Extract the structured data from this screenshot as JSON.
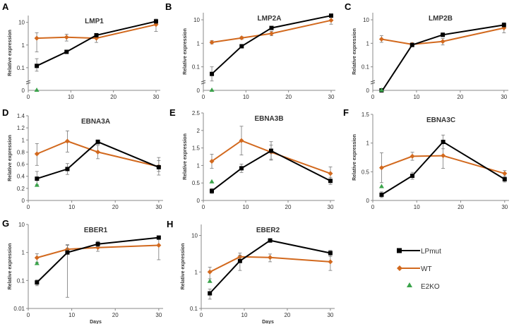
{
  "figure": {
    "series_colors": {
      "LPmut": "#000000",
      "WT": "#d2691e",
      "E2KO": "#3aa34a"
    }
  },
  "legend": {
    "items": [
      {
        "name": "LPmut",
        "color": "#000000",
        "marker": "square"
      },
      {
        "name": "WT",
        "color": "#d2691e",
        "marker": "diamond"
      },
      {
        "name": "E2KO",
        "color": "#3aa34a",
        "marker": "triangle"
      }
    ]
  },
  "chart_data": [
    {
      "type": "line",
      "letter": "A",
      "title": "LMP1",
      "xlabel": "",
      "ylabel": "Relative expression",
      "xlim": [
        0,
        31
      ],
      "xticks": [
        0,
        10,
        20,
        30
      ],
      "xticklabels": [
        "0",
        "10",
        "20",
        "30"
      ],
      "yscale": "log",
      "ylim": [
        0.01,
        20
      ],
      "yticks": [
        0.1,
        1,
        10
      ],
      "yticklabels": [
        "0.1",
        "1",
        "10"
      ],
      "zero_label": "0",
      "series": [
        {
          "name": "LPmut",
          "x": [
            2,
            9,
            16,
            30
          ],
          "values": [
            0.12,
            0.5,
            2.7,
            11
          ],
          "err_low": [
            0.07,
            0.45,
            2.3,
            10
          ],
          "err_high": [
            0.25,
            0.55,
            3.2,
            12
          ]
        },
        {
          "name": "WT",
          "x": [
            2,
            9,
            16,
            30
          ],
          "values": [
            2.0,
            2.2,
            2.0,
            8.0
          ],
          "err_low": [
            0.5,
            1.5,
            1.3,
            4.0
          ],
          "err_high": [
            3.5,
            3.0,
            3.2,
            14
          ]
        },
        {
          "name": "E2KO",
          "x": [
            2
          ],
          "values": [
            0
          ]
        }
      ]
    },
    {
      "type": "line",
      "letter": "B",
      "title": "LMP2A",
      "xlabel": "",
      "ylabel": "Relative expression",
      "xlim": [
        0,
        31
      ],
      "xticks": [
        0,
        10,
        20,
        30
      ],
      "xticklabels": [
        "0",
        "10",
        "20",
        "30"
      ],
      "yscale": "log",
      "ylim": [
        0.01,
        20
      ],
      "yticks": [
        0.1,
        1,
        10
      ],
      "yticklabels": [
        "0.1",
        "1",
        "10"
      ],
      "zero_label": "0",
      "series": [
        {
          "name": "LPmut",
          "x": [
            2,
            9,
            16,
            30
          ],
          "values": [
            0.05,
            0.75,
            4.5,
            15
          ],
          "err_low": [
            0.025,
            0.65,
            4.0,
            14
          ],
          "err_high": [
            0.1,
            0.9,
            5.0,
            16
          ]
        },
        {
          "name": "WT",
          "x": [
            2,
            9,
            16,
            30
          ],
          "values": [
            1.1,
            1.7,
            2.6,
            9.5
          ],
          "err_low": [
            0.95,
            1.5,
            2.1,
            6.5
          ],
          "err_high": [
            1.3,
            1.9,
            3.2,
            13
          ]
        },
        {
          "name": "E2KO",
          "x": [
            2
          ],
          "values": [
            0
          ]
        }
      ]
    },
    {
      "type": "line",
      "letter": "C",
      "title": "LMP2B",
      "xlabel": "",
      "ylabel": "Relative expression",
      "xlim": [
        0,
        31
      ],
      "xticks": [
        0,
        10,
        20,
        30
      ],
      "xticklabels": [
        "0",
        "10",
        "20",
        "30"
      ],
      "yscale": "log",
      "ylim": [
        0.01,
        20
      ],
      "yticks": [
        0.1,
        1,
        10
      ],
      "yticklabels": [
        "0.1",
        "1",
        "10"
      ],
      "zero_label": "0",
      "series": [
        {
          "name": "LPmut",
          "x": [
            2,
            9,
            16,
            30
          ],
          "values": [
            0,
            0.85,
            2.3,
            6.0
          ],
          "err_low": [
            0,
            0.75,
            1.9,
            5.5
          ],
          "err_high": [
            0,
            0.95,
            2.8,
            6.5
          ]
        },
        {
          "name": "WT",
          "x": [
            2,
            9,
            16,
            30
          ],
          "values": [
            1.5,
            0.9,
            1.2,
            4.5
          ],
          "err_low": [
            1.1,
            0.75,
            0.85,
            2.8
          ],
          "err_high": [
            2.1,
            1.05,
            1.6,
            7.5
          ]
        },
        {
          "name": "E2KO",
          "x": [
            2
          ],
          "values": [
            0
          ]
        }
      ]
    },
    {
      "type": "line",
      "letter": "D",
      "title": "EBNA3A",
      "xlabel": "",
      "ylabel": "Relative expression",
      "xlim": [
        0,
        31
      ],
      "xticks": [
        0,
        10,
        20,
        30
      ],
      "xticklabels": [
        "0",
        "10",
        "20",
        "30"
      ],
      "yscale": "linear",
      "ylim": [
        0,
        1.4
      ],
      "yticks": [
        0,
        0.2,
        0.4,
        0.6,
        0.8,
        1,
        1.2,
        1.4
      ],
      "yticklabels": [
        "0",
        "0.2",
        "0.4",
        "0.6",
        "0.8",
        "1",
        "1.2",
        "1.4"
      ],
      "series": [
        {
          "name": "LPmut",
          "x": [
            2,
            9,
            16,
            30
          ],
          "values": [
            0.36,
            0.52,
            0.97,
            0.55
          ],
          "err_low": [
            0.26,
            0.43,
            0.93,
            0.42
          ],
          "err_high": [
            0.48,
            0.61,
            1.0,
            0.66
          ]
        },
        {
          "name": "WT",
          "x": [
            2,
            9,
            16,
            30
          ],
          "values": [
            0.77,
            0.98,
            0.8,
            0.56
          ],
          "err_low": [
            0.58,
            0.8,
            0.69,
            0.48
          ],
          "err_high": [
            0.94,
            1.15,
            0.91,
            0.71
          ]
        },
        {
          "name": "E2KO",
          "x": [
            2
          ],
          "values": [
            0.25
          ]
        }
      ]
    },
    {
      "type": "line",
      "letter": "E",
      "title": "EBNA3B",
      "xlabel": "",
      "ylabel": "Relative expression",
      "xlim": [
        0,
        31
      ],
      "xticks": [
        0,
        10,
        20,
        30
      ],
      "xticklabels": [
        "0",
        "10",
        "20",
        "30"
      ],
      "yscale": "linear",
      "ylim": [
        0,
        2.5
      ],
      "yticks": [
        0,
        0.5,
        1,
        1.5,
        2,
        2.5
      ],
      "yticklabels": [
        "0",
        "0.5",
        "1",
        "1.5",
        "2",
        "2.5"
      ],
      "series": [
        {
          "name": "LPmut",
          "x": [
            2,
            9,
            16,
            30
          ],
          "values": [
            0.27,
            0.92,
            1.42,
            0.56
          ],
          "err_low": [
            0.2,
            0.8,
            1.15,
            0.46
          ],
          "err_high": [
            0.34,
            1.04,
            1.68,
            0.66
          ]
        },
        {
          "name": "WT",
          "x": [
            2,
            9,
            16,
            30
          ],
          "values": [
            1.12,
            1.71,
            1.38,
            0.77
          ],
          "err_low": [
            0.92,
            1.3,
            1.18,
            0.58
          ],
          "err_high": [
            1.32,
            2.12,
            1.58,
            0.96
          ]
        },
        {
          "name": "E2KO",
          "x": [
            2
          ],
          "values": [
            0.53
          ]
        }
      ]
    },
    {
      "type": "line",
      "letter": "F",
      "title": "EBNA3C",
      "xlabel": "",
      "ylabel": "Relative expression",
      "xlim": [
        0,
        31
      ],
      "xticks": [
        0,
        10,
        20,
        30
      ],
      "xticklabels": [
        "0",
        "10",
        "20",
        "30"
      ],
      "yscale": "linear",
      "ylim": [
        0,
        1.5
      ],
      "yticks": [
        0,
        0.5,
        1,
        1.5
      ],
      "yticklabels": [
        "0",
        "0.5",
        "1",
        "1.5"
      ],
      "series": [
        {
          "name": "LPmut",
          "x": [
            2,
            9,
            16,
            30
          ],
          "values": [
            0.1,
            0.43,
            1.02,
            0.37
          ],
          "err_low": [
            0.05,
            0.37,
            0.9,
            0.32
          ],
          "err_high": [
            0.15,
            0.49,
            1.14,
            0.42
          ]
        },
        {
          "name": "WT",
          "x": [
            2,
            9,
            16,
            30
          ],
          "values": [
            0.57,
            0.77,
            0.78,
            0.47
          ],
          "err_low": [
            0.31,
            0.7,
            0.56,
            0.42
          ],
          "err_high": [
            0.83,
            0.84,
            1.0,
            0.52
          ]
        },
        {
          "name": "E2KO",
          "x": [
            2
          ],
          "values": [
            0.24
          ]
        }
      ]
    },
    {
      "type": "line",
      "letter": "G",
      "title": "EBER1",
      "xlabel": "Days",
      "ylabel": "Relative expression",
      "xlim": [
        0,
        31
      ],
      "xticks": [
        0,
        10,
        20,
        30
      ],
      "xticklabels": [
        "0",
        "10",
        "20",
        "30"
      ],
      "yscale": "log",
      "ylim": [
        0.01,
        10
      ],
      "yticks": [
        0.01,
        0.1,
        1,
        10
      ],
      "yticklabels": [
        "0.01",
        "0.1",
        "1",
        "10"
      ],
      "series": [
        {
          "name": "LPmut",
          "x": [
            2,
            9,
            16,
            30
          ],
          "values": [
            0.085,
            1.0,
            2.0,
            3.4
          ],
          "err_low": [
            0.065,
            0.025,
            1.6,
            3.0
          ],
          "err_high": [
            0.105,
            1.9,
            2.5,
            3.9
          ]
        },
        {
          "name": "WT",
          "x": [
            2,
            9,
            16,
            30
          ],
          "values": [
            0.65,
            1.3,
            1.5,
            1.8
          ],
          "err_low": [
            0.45,
            0.9,
            1.1,
            0.55
          ],
          "err_high": [
            0.9,
            1.8,
            2.0,
            3.5
          ]
        },
        {
          "name": "E2KO",
          "x": [
            2
          ],
          "values": [
            0.4
          ]
        }
      ]
    },
    {
      "type": "line",
      "letter": "H",
      "title": "EBER2",
      "xlabel": "Days",
      "ylabel": "Relative expression",
      "xlim": [
        0,
        31
      ],
      "xticks": [
        0,
        10,
        20,
        30
      ],
      "xticklabels": [
        "0",
        "10",
        "20",
        "30"
      ],
      "yscale": "log",
      "ylim": [
        0.1,
        20
      ],
      "yticks": [
        0.1,
        1,
        10
      ],
      "yticklabels": [
        "0.1",
        "1",
        "10"
      ],
      "series": [
        {
          "name": "LPmut",
          "x": [
            2,
            9,
            16,
            30
          ],
          "values": [
            0.26,
            2.0,
            7.3,
            3.3
          ],
          "err_low": [
            0.18,
            1.1,
            6.5,
            2.7
          ],
          "err_high": [
            0.34,
            2.9,
            8.2,
            3.9
          ]
        },
        {
          "name": "WT",
          "x": [
            2,
            9,
            16,
            30
          ],
          "values": [
            1.0,
            2.6,
            2.5,
            1.9
          ],
          "err_low": [
            0.65,
            2.0,
            1.9,
            1.1
          ],
          "err_high": [
            1.35,
            3.3,
            3.1,
            2.7
          ]
        },
        {
          "name": "E2KO",
          "x": [
            2
          ],
          "values": [
            0.55
          ]
        }
      ]
    }
  ]
}
